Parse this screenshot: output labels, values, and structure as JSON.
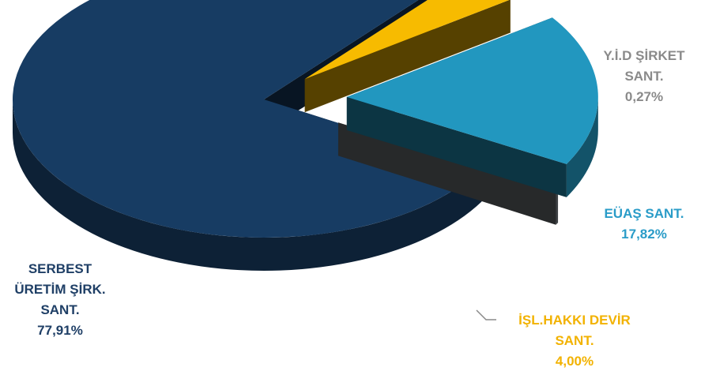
{
  "chart_data": {
    "type": "pie",
    "style": "3d-exploded",
    "title": "",
    "slices": [
      {
        "label_lines": [
          "SERBEST",
          "ÜRETİM ŞİRK.",
          "SANT."
        ],
        "value_text": "77,91%",
        "value": 77.91,
        "color": "#173c63"
      },
      {
        "label_lines": [
          "İŞL.HAKKI DEVİR",
          "SANT."
        ],
        "value_text": "4,00%",
        "value": 4.0,
        "color": "#f7bb00"
      },
      {
        "label_lines": [
          "EÜAŞ SANT."
        ],
        "value_text": "17,82%",
        "value": 17.82,
        "color": "#2297bf"
      },
      {
        "label_lines": [
          "Y.İ.D  ŞİRKET",
          "SANT."
        ],
        "value_text": "0,27%",
        "value": 0.27,
        "color": "#6f7479"
      }
    ],
    "label_colors": [
      "#1f3f66",
      "#f2b200",
      "#2a9cc8",
      "#8a8a8a"
    ]
  }
}
